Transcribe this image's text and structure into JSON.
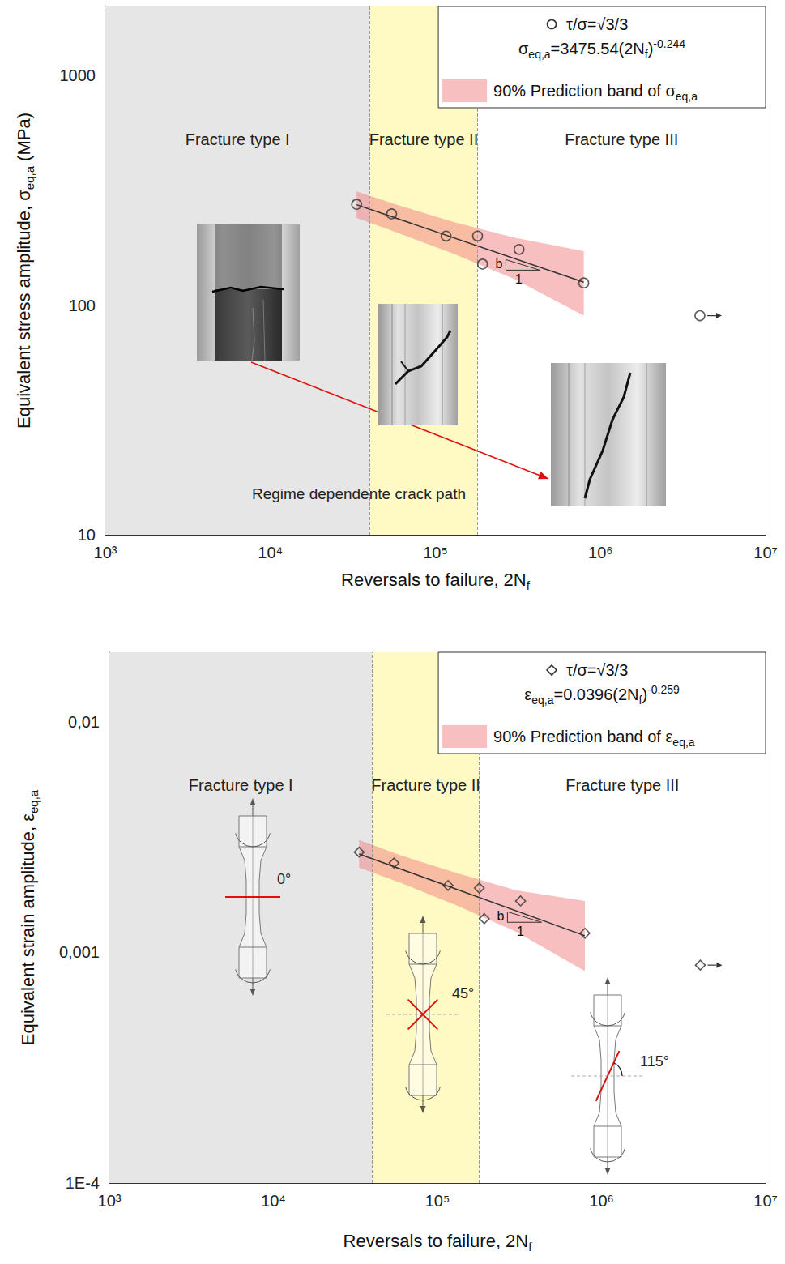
{
  "chart_data": [
    {
      "type": "scatter",
      "x_label": [
        {
          "text": "Reversals to failure, 2N"
        },
        {
          "text": "f",
          "sub": true
        }
      ],
      "y_label": [
        {
          "text": "Equivalent stress amplitude, σ"
        },
        {
          "text": "eq,a",
          "sub": true
        },
        {
          "text": " (MPa)"
        }
      ],
      "log": true,
      "grid": true,
      "legend": "upper right",
      "xlim": [
        1000,
        10000000
      ],
      "xticks": [
        {
          "value": 1000,
          "label": "10³"
        },
        {
          "value": 10000,
          "label": "10⁴"
        },
        {
          "value": 100000,
          "label": "10⁵"
        },
        {
          "value": 1000000,
          "label": "10⁶"
        },
        {
          "value": 10000000,
          "label": "10⁷"
        }
      ],
      "ylim": [
        10,
        2000
      ],
      "yticks": [
        10,
        100,
        1000
      ],
      "series": [
        {
          "name": "τ/σ=√3/3",
          "color": "#333333",
          "marker": "circle",
          "x": [
            33300,
            54300,
            116000,
            180000,
            193000,
            321000,
            792000
          ],
          "values": [
            275,
            250,
            200,
            200,
            151,
            175,
            125
          ]
        }
      ],
      "runout": {
        "x": [
          4000000
        ],
        "values": [
          90
        ]
      },
      "fit": {
        "equation": [
          {
            "text": "σ"
          },
          {
            "text": "eq,a",
            "sub": true
          },
          {
            "text": "=3475.54(2N"
          },
          {
            "text": "f",
            "sub": true
          },
          {
            "text": ")"
          },
          {
            "text": "-0.244",
            "sup": true
          }
        ],
        "color": "#333333",
        "x": [
          33300,
          792000
        ],
        "values": [
          274,
          126
        ]
      },
      "band": {
        "name": [
          {
            "text": "90% Prediction band of σ"
          },
          {
            "text": "eq,a",
            "sub": true
          }
        ],
        "color": "#f08080",
        "x": [
          33300,
          60000,
          130000,
          300000,
          792000
        ],
        "lower": [
          240,
          206,
          167,
          130,
          90
        ],
        "upper": [
          313,
          272,
          230,
          197,
          172
        ]
      },
      "regions": [
        {
          "label": "Fracture type I",
          "x": [
            1000,
            40000
          ],
          "color": "#e6e6e6"
        },
        {
          "label": "Fracture type II",
          "x": [
            40000,
            180000
          ],
          "color": "#fff9c4"
        },
        {
          "label": "Fracture type III",
          "x": [
            180000,
            10000000
          ],
          "color": "#ffffff"
        }
      ],
      "slope": {
        "rise": "b",
        "run": "1"
      },
      "annotations": [
        "Regime dependente crack path"
      ]
    },
    {
      "type": "scatter",
      "x_label": [
        {
          "text": "Reversals to failure, 2N"
        },
        {
          "text": "f",
          "sub": true
        }
      ],
      "y_label": [
        {
          "text": "Equivalent strain amplitude, ε"
        },
        {
          "text": "eq,a",
          "sub": true
        }
      ],
      "log": true,
      "grid": true,
      "legend": "upper right",
      "xlim": [
        1000,
        10000000
      ],
      "xticks": [
        {
          "value": 1000,
          "label": "10³"
        },
        {
          "value": 10000,
          "label": "10⁴"
        },
        {
          "value": 100000,
          "label": "10⁵"
        },
        {
          "value": 1000000,
          "label": "10⁶"
        },
        {
          "value": 10000000,
          "label": "10⁷"
        }
      ],
      "ylim": [
        0.0001,
        0.02
      ],
      "yticks": [
        {
          "value": 0.0001,
          "label": "1E-4"
        },
        {
          "value": 0.001,
          "label": "0,001"
        },
        {
          "value": 0.01,
          "label": "0,01"
        }
      ],
      "series": [
        {
          "name": "τ/σ=√3/3",
          "color": "#333333",
          "marker": "diamond",
          "x": [
            33300,
            54300,
            116000,
            180000,
            193000,
            321000,
            792000
          ],
          "values": [
            0.00272,
            0.00244,
            0.00195,
            0.0019,
            0.0014,
            0.00167,
            0.00121
          ]
        }
      ],
      "runout": {
        "x": [
          4000000
        ],
        "values": [
          0.00088
        ]
      },
      "fit": {
        "equation": [
          {
            "text": "ε"
          },
          {
            "text": "eq,a",
            "sub": true
          },
          {
            "text": "=0.0396(2N"
          },
          {
            "text": "f",
            "sub": true
          },
          {
            "text": ")"
          },
          {
            "text": "-0.259",
            "sup": true
          }
        ],
        "color": "#333333",
        "x": [
          33300,
          792000
        ],
        "values": [
          0.00267,
          0.00118
        ]
      },
      "band": {
        "name": [
          {
            "text": "90% Prediction band of ε"
          },
          {
            "text": "eq,a",
            "sub": true
          }
        ],
        "color": "#f08080",
        "x": [
          33300,
          60000,
          130000,
          300000,
          792000
        ],
        "lower": [
          0.00233,
          0.002,
          0.0016,
          0.00123,
          0.00083
        ],
        "upper": [
          0.00307,
          0.00263,
          0.00221,
          0.00186,
          0.00167
        ]
      },
      "regions": [
        {
          "label": "Fracture type I",
          "x": [
            1000,
            40000
          ],
          "color": "#e6e6e6"
        },
        {
          "label": "Fracture type II",
          "x": [
            40000,
            180000
          ],
          "color": "#fff9c4"
        },
        {
          "label": "Fracture type III",
          "x": [
            180000,
            10000000
          ],
          "color": "#ffffff"
        }
      ],
      "slope": {
        "rise": "b",
        "run": "1"
      },
      "fracture_angles": [
        "0°",
        "45°",
        "115°"
      ]
    }
  ]
}
